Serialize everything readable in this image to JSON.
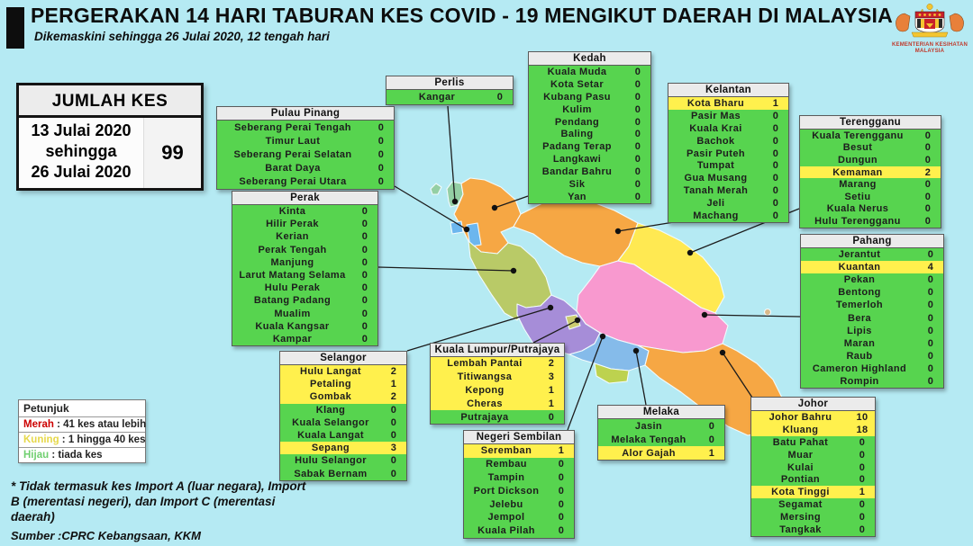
{
  "header": {
    "title": "PERGERAKAN 14 HARI TABURAN KES COVID - 19 MENGIKUT DAERAH DI MALAYSIA",
    "subtitle": "Dikemaskini sehingga 26 Julai 2020, 12 tengah hari",
    "logo_caption_line1": "KEMENTERIAN KESIHATAN",
    "logo_caption_line2": "MALAYSIA"
  },
  "summary": {
    "title": "JUMLAH KES",
    "period_line1": "13 Julai 2020",
    "period_line2": "sehingga",
    "period_line3": "26 Julai 2020",
    "total": "99"
  },
  "colors": {
    "green": "#57d44f",
    "yellow": "#fff04d",
    "red": "#cc0000",
    "legend_yellow_label": "#e6d84a",
    "legend_green_label": "#6fcf6f"
  },
  "legend": {
    "title": "Petunjuk",
    "items": [
      {
        "label": "Merah",
        "desc": " : 41 kes atau lebih",
        "color": "#cc0000"
      },
      {
        "label": "Kuning",
        "desc": " : 1 hingga 40 kes",
        "color": "#e6d84a"
      },
      {
        "label": "Hijau",
        "desc": " : tiada kes",
        "color": "#6fcf6f"
      }
    ]
  },
  "notes": {
    "footnote": "* Tidak termasuk kes Import A (luar negara), Import B (merentasi negeri),  dan Import C (merentasi daerah)",
    "source": "Sumber :CPRC Kebangsaan,  KKM"
  },
  "states": [
    {
      "id": "perlis",
      "name": "Perlis",
      "rows": [
        {
          "district": "Kangar",
          "value": "0",
          "level": "green"
        }
      ]
    },
    {
      "id": "pinang",
      "name": "Pulau Pinang",
      "rows": [
        {
          "district": "Seberang Perai Tengah",
          "value": "0",
          "level": "green"
        },
        {
          "district": "Timur Laut",
          "value": "0",
          "level": "green"
        },
        {
          "district": "Seberang Perai Selatan",
          "value": "0",
          "level": "green"
        },
        {
          "district": "Barat Daya",
          "value": "0",
          "level": "green"
        },
        {
          "district": "Seberang Perai Utara",
          "value": "0",
          "level": "green"
        }
      ]
    },
    {
      "id": "kedah",
      "name": "Kedah",
      "rows": [
        {
          "district": "Kuala Muda",
          "value": "0",
          "level": "green"
        },
        {
          "district": "Kota Setar",
          "value": "0",
          "level": "green"
        },
        {
          "district": "Kubang Pasu",
          "value": "0",
          "level": "green"
        },
        {
          "district": "Kulim",
          "value": "0",
          "level": "green"
        },
        {
          "district": "Pendang",
          "value": "0",
          "level": "green"
        },
        {
          "district": "Baling",
          "value": "0",
          "level": "green"
        },
        {
          "district": "Padang Terap",
          "value": "0",
          "level": "green"
        },
        {
          "district": "Langkawi",
          "value": "0",
          "level": "green"
        },
        {
          "district": "Bandar Bahru",
          "value": "0",
          "level": "green"
        },
        {
          "district": "Sik",
          "value": "0",
          "level": "green"
        },
        {
          "district": "Yan",
          "value": "0",
          "level": "green"
        }
      ]
    },
    {
      "id": "kelantan",
      "name": "Kelantan",
      "rows": [
        {
          "district": "Kota Bharu",
          "value": "1",
          "level": "yellow"
        },
        {
          "district": "Pasir Mas",
          "value": "0",
          "level": "green"
        },
        {
          "district": "Kuala Krai",
          "value": "0",
          "level": "green"
        },
        {
          "district": "Bachok",
          "value": "0",
          "level": "green"
        },
        {
          "district": "Pasir Puteh",
          "value": "0",
          "level": "green"
        },
        {
          "district": "Tumpat",
          "value": "0",
          "level": "green"
        },
        {
          "district": "Gua Musang",
          "value": "0",
          "level": "green"
        },
        {
          "district": "Tanah Merah",
          "value": "0",
          "level": "green"
        },
        {
          "district": "Jeli",
          "value": "0",
          "level": "green"
        },
        {
          "district": "Machang",
          "value": "0",
          "level": "green"
        }
      ]
    },
    {
      "id": "terengganu",
      "name": "Terengganu",
      "rows": [
        {
          "district": "Kuala Terengganu",
          "value": "0",
          "level": "green"
        },
        {
          "district": "Besut",
          "value": "0",
          "level": "green"
        },
        {
          "district": "Dungun",
          "value": "0",
          "level": "green"
        },
        {
          "district": "Kemaman",
          "value": "2",
          "level": "yellow"
        },
        {
          "district": "Marang",
          "value": "0",
          "level": "green"
        },
        {
          "district": "Setiu",
          "value": "0",
          "level": "green"
        },
        {
          "district": "Kuala Nerus",
          "value": "0",
          "level": "green"
        },
        {
          "district": "Hulu Terengganu",
          "value": "0",
          "level": "green"
        }
      ]
    },
    {
      "id": "perak",
      "name": "Perak",
      "rows": [
        {
          "district": "Kinta",
          "value": "0",
          "level": "green"
        },
        {
          "district": "Hilir Perak",
          "value": "0",
          "level": "green"
        },
        {
          "district": "Kerian",
          "value": "0",
          "level": "green"
        },
        {
          "district": "Perak Tengah",
          "value": "0",
          "level": "green"
        },
        {
          "district": "Manjung",
          "value": "0",
          "level": "green"
        },
        {
          "district": "Larut Matang Selama",
          "value": "0",
          "level": "green"
        },
        {
          "district": "Hulu Perak",
          "value": "0",
          "level": "green"
        },
        {
          "district": "Batang Padang",
          "value": "0",
          "level": "green"
        },
        {
          "district": "Mualim",
          "value": "0",
          "level": "green"
        },
        {
          "district": "Kuala Kangsar",
          "value": "0",
          "level": "green"
        },
        {
          "district": "Kampar",
          "value": "0",
          "level": "green"
        }
      ]
    },
    {
      "id": "pahang",
      "name": "Pahang",
      "rows": [
        {
          "district": "Jerantut",
          "value": "0",
          "level": "green"
        },
        {
          "district": "Kuantan",
          "value": "4",
          "level": "yellow"
        },
        {
          "district": "Pekan",
          "value": "0",
          "level": "green"
        },
        {
          "district": "Bentong",
          "value": "0",
          "level": "green"
        },
        {
          "district": "Temerloh",
          "value": "0",
          "level": "green"
        },
        {
          "district": "Bera",
          "value": "0",
          "level": "green"
        },
        {
          "district": "Lipis",
          "value": "0",
          "level": "green"
        },
        {
          "district": "Maran",
          "value": "0",
          "level": "green"
        },
        {
          "district": "Raub",
          "value": "0",
          "level": "green"
        },
        {
          "district": "Cameron Highland",
          "value": "0",
          "level": "green"
        },
        {
          "district": "Rompin",
          "value": "0",
          "level": "green"
        }
      ]
    },
    {
      "id": "selangor",
      "name": "Selangor",
      "rows": [
        {
          "district": "Hulu Langat",
          "value": "2",
          "level": "yellow"
        },
        {
          "district": "Petaling",
          "value": "1",
          "level": "yellow"
        },
        {
          "district": "Gombak",
          "value": "2",
          "level": "yellow"
        },
        {
          "district": "Klang",
          "value": "0",
          "level": "green"
        },
        {
          "district": "Kuala Selangor",
          "value": "0",
          "level": "green"
        },
        {
          "district": "Kuala Langat",
          "value": "0",
          "level": "green"
        },
        {
          "district": "Sepang",
          "value": "3",
          "level": "yellow"
        },
        {
          "district": "Hulu Selangor",
          "value": "0",
          "level": "green"
        },
        {
          "district": "Sabak Bernam",
          "value": "0",
          "level": "green"
        }
      ]
    },
    {
      "id": "kl",
      "name": "Kuala Lumpur/Putrajaya",
      "rows": [
        {
          "district": "Lembah Pantai",
          "value": "2",
          "level": "yellow"
        },
        {
          "district": "Titiwangsa",
          "value": "3",
          "level": "yellow"
        },
        {
          "district": "Kepong",
          "value": "1",
          "level": "yellow"
        },
        {
          "district": "Cheras",
          "value": "1",
          "level": "yellow"
        },
        {
          "district": "Putrajaya",
          "value": "0",
          "level": "green"
        }
      ]
    },
    {
      "id": "ns",
      "name": "Negeri Sembilan",
      "rows": [
        {
          "district": "Seremban",
          "value": "1",
          "level": "yellow"
        },
        {
          "district": "Rembau",
          "value": "0",
          "level": "green"
        },
        {
          "district": "Tampin",
          "value": "0",
          "level": "green"
        },
        {
          "district": "Port Dickson",
          "value": "0",
          "level": "green"
        },
        {
          "district": "Jelebu",
          "value": "0",
          "level": "green"
        },
        {
          "district": "Jempol",
          "value": "0",
          "level": "green"
        },
        {
          "district": "Kuala Pilah",
          "value": "0",
          "level": "green"
        }
      ]
    },
    {
      "id": "melaka",
      "name": "Melaka",
      "rows": [
        {
          "district": "Jasin",
          "value": "0",
          "level": "green"
        },
        {
          "district": "Melaka Tengah",
          "value": "0",
          "level": "green"
        },
        {
          "district": "Alor Gajah",
          "value": "1",
          "level": "yellow"
        }
      ]
    },
    {
      "id": "johor",
      "name": "Johor",
      "rows": [
        {
          "district": "Johor Bahru",
          "value": "10",
          "level": "yellow"
        },
        {
          "district": "Kluang",
          "value": "18",
          "level": "yellow"
        },
        {
          "district": "Batu Pahat",
          "value": "0",
          "level": "green"
        },
        {
          "district": "Muar",
          "value": "0",
          "level": "green"
        },
        {
          "district": "Kulai",
          "value": "0",
          "level": "green"
        },
        {
          "district": "Pontian",
          "value": "0",
          "level": "green"
        },
        {
          "district": "Kota Tinggi",
          "value": "1",
          "level": "yellow"
        },
        {
          "district": "Segamat",
          "value": "0",
          "level": "green"
        },
        {
          "district": "Mersing",
          "value": "0",
          "level": "green"
        },
        {
          "district": "Tangkak",
          "value": "0",
          "level": "green"
        }
      ]
    }
  ]
}
